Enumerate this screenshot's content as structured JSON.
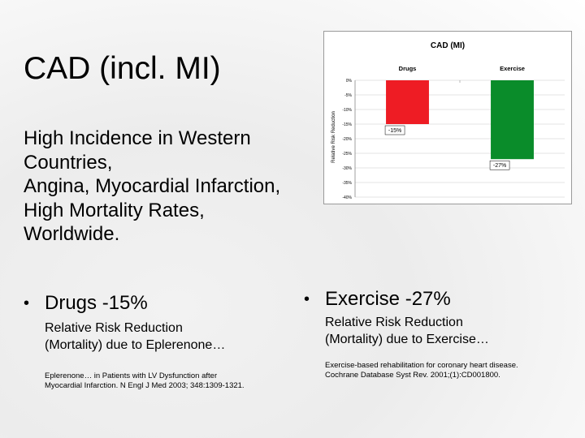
{
  "slide": {
    "title": "CAD (incl. MI)",
    "intro_lines": [
      "High Incidence in Western",
      "Countries,",
      "Angina, Myocardial Infarction,",
      "High Mortality Rates,",
      "Worldwide."
    ],
    "left": {
      "bullet": "Drugs -15%",
      "sub_lines": [
        "Relative Risk Reduction",
        "(Mortality) due to Eplerenone…"
      ],
      "ref_lines": [
        "Eplerenone… in Patients with LV Dysfunction after",
        "Myocardial Infarction. N Engl J Med 2003; 348:1309-1321."
      ]
    },
    "right": {
      "bullet": "Exercise -27%",
      "sub_lines": [
        "Relative Risk Reduction",
        "(Mortality) due to Exercise…"
      ],
      "ref_lines": [
        "Exercise-based rehabilitation for coronary heart disease.",
        "Cochrane Database Syst Rev. 2001;(1):CD001800."
      ]
    }
  },
  "chart_data": {
    "type": "bar",
    "title": "CAD (MI)",
    "ylabel": "Relative Risk Reduction",
    "xlabel": "",
    "categories": [
      "Drugs",
      "Exercise"
    ],
    "values": [
      -15,
      -27
    ],
    "data_labels": [
      "-15%",
      "-27%"
    ],
    "colors": [
      "#ee1c24",
      "#0a8c2a"
    ],
    "ylim": [
      -40,
      0
    ],
    "yticks": [
      0,
      -5,
      -10,
      -15,
      -20,
      -25,
      -30,
      -35,
      -40
    ],
    "ytick_labels": [
      "0%",
      "-5%",
      "-10%",
      "-15%",
      "-20%",
      "-25%",
      "-30%",
      "-35%",
      "-40%"
    ],
    "grid": true,
    "legend": "none"
  }
}
